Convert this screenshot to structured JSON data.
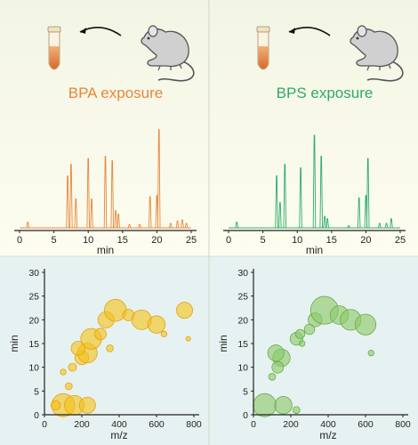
{
  "colors": {
    "bpa": "#e8863a",
    "bps": "#2eab6a",
    "bpa_bubble": "#f5c21a",
    "bpa_bubble_stroke": "#e0a414",
    "bps_bubble": "#8cc968",
    "bps_bubble_stroke": "#6aa84a",
    "top_bg": "#fbfbe6",
    "bottom_bg": "#e7f3f2",
    "divider": "#cfd8c4",
    "axis": "#222222",
    "mouse_fill": "#d0d0d0",
    "mouse_stroke": "#555555",
    "tube_liquid": "#e8863a"
  },
  "icons": {
    "tube": "sample-tube-icon",
    "mouse": "mouse-icon",
    "arrow": "curved-arrow-icon"
  },
  "panels": [
    {
      "id": "bpa",
      "label": "BPA exposure",
      "chromatogram": {
        "xlabel": "min",
        "xticks": [
          "0",
          "5",
          "10",
          "15",
          "20",
          "25"
        ],
        "xlim": [
          0,
          25
        ],
        "peaks": [
          {
            "t": 1.2,
            "h": 0.05
          },
          {
            "t": 7.0,
            "h": 0.45
          },
          {
            "t": 7.5,
            "h": 0.55
          },
          {
            "t": 8.2,
            "h": 0.25
          },
          {
            "t": 10.0,
            "h": 0.6
          },
          {
            "t": 10.5,
            "h": 0.25
          },
          {
            "t": 12.5,
            "h": 0.62
          },
          {
            "t": 13.5,
            "h": 0.58
          },
          {
            "t": 14.0,
            "h": 0.15
          },
          {
            "t": 14.4,
            "h": 0.12
          },
          {
            "t": 16.0,
            "h": 0.03
          },
          {
            "t": 17.5,
            "h": 0.03
          },
          {
            "t": 19.0,
            "h": 0.27
          },
          {
            "t": 20.0,
            "h": 0.28
          },
          {
            "t": 20.3,
            "h": 0.85
          },
          {
            "t": 22.0,
            "h": 0.04
          },
          {
            "t": 23.0,
            "h": 0.06
          },
          {
            "t": 23.7,
            "h": 0.07
          },
          {
            "t": 24.3,
            "h": 0.04
          }
        ]
      },
      "bubble": {
        "xlabel": "m/z",
        "ylabel": "min",
        "xticks": [
          "0",
          "200",
          "400",
          "600",
          "800"
        ],
        "yticks": [
          "0",
          "5",
          "10",
          "15",
          "20",
          "25",
          "30"
        ],
        "xlim": [
          0,
          800
        ],
        "ylim": [
          0,
          30
        ],
        "points": [
          {
            "mz": 100,
            "rt": 2,
            "r": 1.0
          },
          {
            "mz": 160,
            "rt": 2,
            "r": 0.85
          },
          {
            "mz": 230,
            "rt": 2,
            "r": 0.7
          },
          {
            "mz": 60,
            "rt": 2,
            "r": 0.4
          },
          {
            "mz": 130,
            "rt": 6,
            "r": 0.3
          },
          {
            "mz": 150,
            "rt": 10,
            "r": 0.35
          },
          {
            "mz": 100,
            "rt": 9,
            "r": 0.25
          },
          {
            "mz": 200,
            "rt": 12,
            "r": 0.6
          },
          {
            "mz": 230,
            "rt": 13,
            "r": 0.85
          },
          {
            "mz": 180,
            "rt": 14,
            "r": 0.6
          },
          {
            "mz": 250,
            "rt": 16,
            "r": 0.9
          },
          {
            "mz": 300,
            "rt": 17,
            "r": 0.5
          },
          {
            "mz": 330,
            "rt": 20,
            "r": 0.7
          },
          {
            "mz": 380,
            "rt": 22,
            "r": 0.95
          },
          {
            "mz": 450,
            "rt": 21,
            "r": 0.5
          },
          {
            "mz": 520,
            "rt": 20,
            "r": 0.85
          },
          {
            "mz": 600,
            "rt": 19,
            "r": 0.75
          },
          {
            "mz": 750,
            "rt": 22,
            "r": 0.7
          },
          {
            "mz": 640,
            "rt": 17,
            "r": 0.25
          },
          {
            "mz": 770,
            "rt": 16,
            "r": 0.2
          },
          {
            "mz": 350,
            "rt": 14,
            "r": 0.3
          }
        ]
      }
    },
    {
      "id": "bps",
      "label": "BPS exposure",
      "chromatogram": {
        "xlabel": "min",
        "xticks": [
          "0",
          "5",
          "10",
          "15",
          "20",
          "25"
        ],
        "xlim": [
          0,
          25
        ],
        "peaks": [
          {
            "t": 1.2,
            "h": 0.05
          },
          {
            "t": 7.0,
            "h": 0.45
          },
          {
            "t": 7.5,
            "h": 0.22
          },
          {
            "t": 8.2,
            "h": 0.55
          },
          {
            "t": 10.5,
            "h": 0.52
          },
          {
            "t": 12.5,
            "h": 0.8
          },
          {
            "t": 13.5,
            "h": 0.62
          },
          {
            "t": 14.0,
            "h": 0.1
          },
          {
            "t": 14.4,
            "h": 0.08
          },
          {
            "t": 17.5,
            "h": 0.02
          },
          {
            "t": 19.0,
            "h": 0.26
          },
          {
            "t": 20.0,
            "h": 0.28
          },
          {
            "t": 20.3,
            "h": 0.6
          },
          {
            "t": 22.0,
            "h": 0.04
          },
          {
            "t": 23.0,
            "h": 0.04
          },
          {
            "t": 23.7,
            "h": 0.08
          }
        ]
      },
      "bubble": {
        "xlabel": "m/z",
        "ylabel": "min",
        "xticks": [
          "0",
          "200",
          "400",
          "600",
          "800"
        ],
        "yticks": [
          "0",
          "5",
          "10",
          "15",
          "20",
          "25",
          "30"
        ],
        "xlim": [
          0,
          800
        ],
        "ylim": [
          0,
          30
        ],
        "points": [
          {
            "mz": 60,
            "rt": 2,
            "r": 1.0
          },
          {
            "mz": 160,
            "rt": 2,
            "r": 0.75
          },
          {
            "mz": 230,
            "rt": 1,
            "r": 0.3
          },
          {
            "mz": 150,
            "rt": 12,
            "r": 0.75
          },
          {
            "mz": 120,
            "rt": 13,
            "r": 0.7
          },
          {
            "mz": 130,
            "rt": 10,
            "r": 0.5
          },
          {
            "mz": 100,
            "rt": 8,
            "r": 0.3
          },
          {
            "mz": 230,
            "rt": 16,
            "r": 0.55
          },
          {
            "mz": 250,
            "rt": 17,
            "r": 0.4
          },
          {
            "mz": 300,
            "rt": 18,
            "r": 0.45
          },
          {
            "mz": 330,
            "rt": 20,
            "r": 0.6
          },
          {
            "mz": 380,
            "rt": 22,
            "r": 1.2
          },
          {
            "mz": 460,
            "rt": 21,
            "r": 0.8
          },
          {
            "mz": 520,
            "rt": 20,
            "r": 0.9
          },
          {
            "mz": 600,
            "rt": 19,
            "r": 0.9
          },
          {
            "mz": 260,
            "rt": 15,
            "r": 0.25
          },
          {
            "mz": 630,
            "rt": 13,
            "r": 0.25
          }
        ]
      }
    }
  ]
}
